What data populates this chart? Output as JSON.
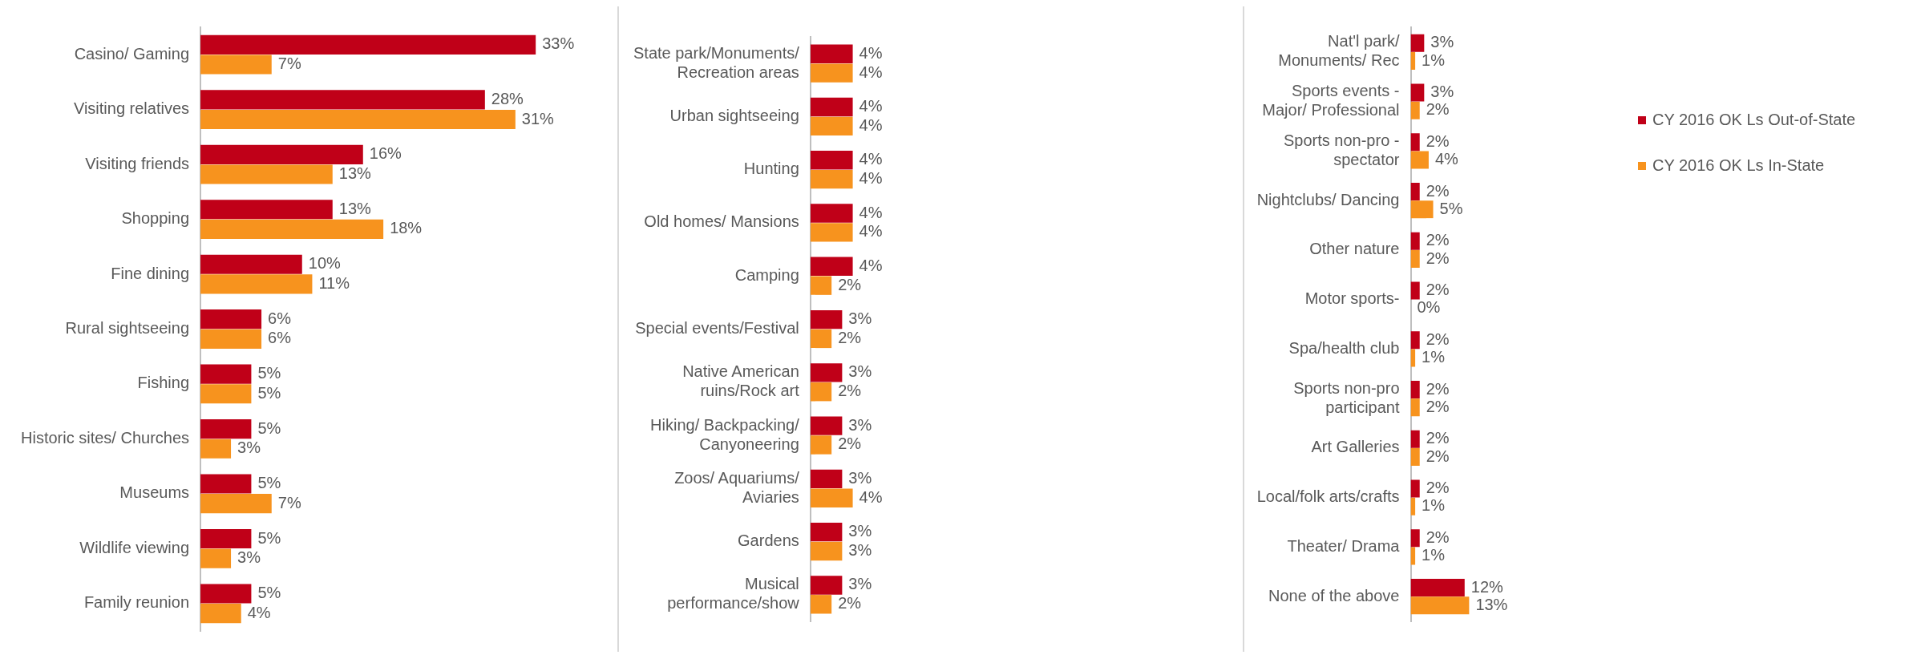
{
  "chart_data": [
    {
      "type": "bar",
      "orientation": "horizontal",
      "tick_labels": "y",
      "grid": false,
      "legend": false,
      "categories": [
        "Casino/ Gaming",
        "Visiting relatives",
        "Visiting friends",
        "Shopping",
        "Fine dining",
        "Rural sightseeing",
        "Fishing",
        "Historic sites/ Churches",
        "Museums",
        "Wildlife viewing",
        "Family reunion"
      ],
      "series": [
        {
          "color": "#c00018",
          "values": [
            33,
            28,
            16,
            13,
            10,
            6,
            5,
            5,
            5,
            5,
            5
          ],
          "value_labels": [
            "33%",
            "28%",
            "16%",
            "13%",
            "10%",
            "6%",
            "5%",
            "5%",
            "5%",
            "5%",
            "5%"
          ]
        },
        {
          "color": "#f7931e",
          "values": [
            7,
            31,
            13,
            18,
            11,
            6,
            5,
            3,
            7,
            3,
            4
          ],
          "value_labels": [
            "7%",
            "31%",
            "13%",
            "18%",
            "11%",
            "6%",
            "5%",
            "3%",
            "7%",
            "3%",
            "4%"
          ]
        }
      ]
    },
    {
      "type": "bar",
      "orientation": "horizontal",
      "tick_labels": "y",
      "grid": false,
      "legend": false,
      "categories": [
        "State park/Monuments/\nRecreation areas",
        "Urban sightseeing",
        "Hunting",
        "Old homes/ Mansions",
        "Camping",
        "Special events/Festival",
        "Native American\nruins/Rock art",
        "Hiking/ Backpacking/\nCanyoneering",
        "Zoos/ Aquariums/\nAviaries",
        "Gardens",
        "Musical\nperformance/show"
      ],
      "series": [
        {
          "color": "#c00018",
          "values": [
            4,
            4,
            4,
            4,
            4,
            3,
            3,
            3,
            3,
            3,
            3
          ],
          "value_labels": [
            "4%",
            "4%",
            "4%",
            "4%",
            "4%",
            "3%",
            "3%",
            "3%",
            "3%",
            "3%",
            "3%"
          ]
        },
        {
          "color": "#f7931e",
          "values": [
            4,
            4,
            4,
            4,
            2,
            2,
            2,
            2,
            4,
            3,
            2
          ],
          "value_labels": [
            "4%",
            "4%",
            "4%",
            "4%",
            "2%",
            "2%",
            "2%",
            "2%",
            "4%",
            "3%",
            "2%"
          ]
        }
      ]
    },
    {
      "type": "bar",
      "orientation": "horizontal",
      "tick_labels": "y",
      "grid": false,
      "legend": "right",
      "categories": [
        "Nat'l park/\nMonuments/ Rec",
        "Sports events -\nMajor/ Professional",
        "Sports non-pro -\nspectator",
        "Nightclubs/ Dancing",
        "Other nature",
        "Motor sports-",
        "Spa/health club",
        "Sports non-pro\nparticipant",
        "Art Galleries",
        "Local/folk arts/crafts",
        "Theater/ Drama",
        "None of the above"
      ],
      "series": [
        {
          "name": "CY 2016 OK Ls Out-of-State",
          "color": "#c00018",
          "values": [
            3,
            3,
            2,
            2,
            2,
            2,
            2,
            2,
            2,
            2,
            2,
            12
          ],
          "value_labels": [
            "3%",
            "3%",
            "2%",
            "2%",
            "2%",
            "2%",
            "2%",
            "2%",
            "2%",
            "2%",
            "2%",
            "12%"
          ]
        },
        {
          "name": "CY 2016 OK Ls In-State",
          "color": "#f7931e",
          "values": [
            1,
            2,
            4,
            5,
            2,
            0,
            1,
            2,
            2,
            1,
            1,
            13
          ],
          "value_labels": [
            "1%",
            "2%",
            "4%",
            "5%",
            "2%",
            "0%",
            "1%",
            "2%",
            "2%",
            "1%",
            "1%",
            "13%"
          ]
        }
      ]
    }
  ]
}
